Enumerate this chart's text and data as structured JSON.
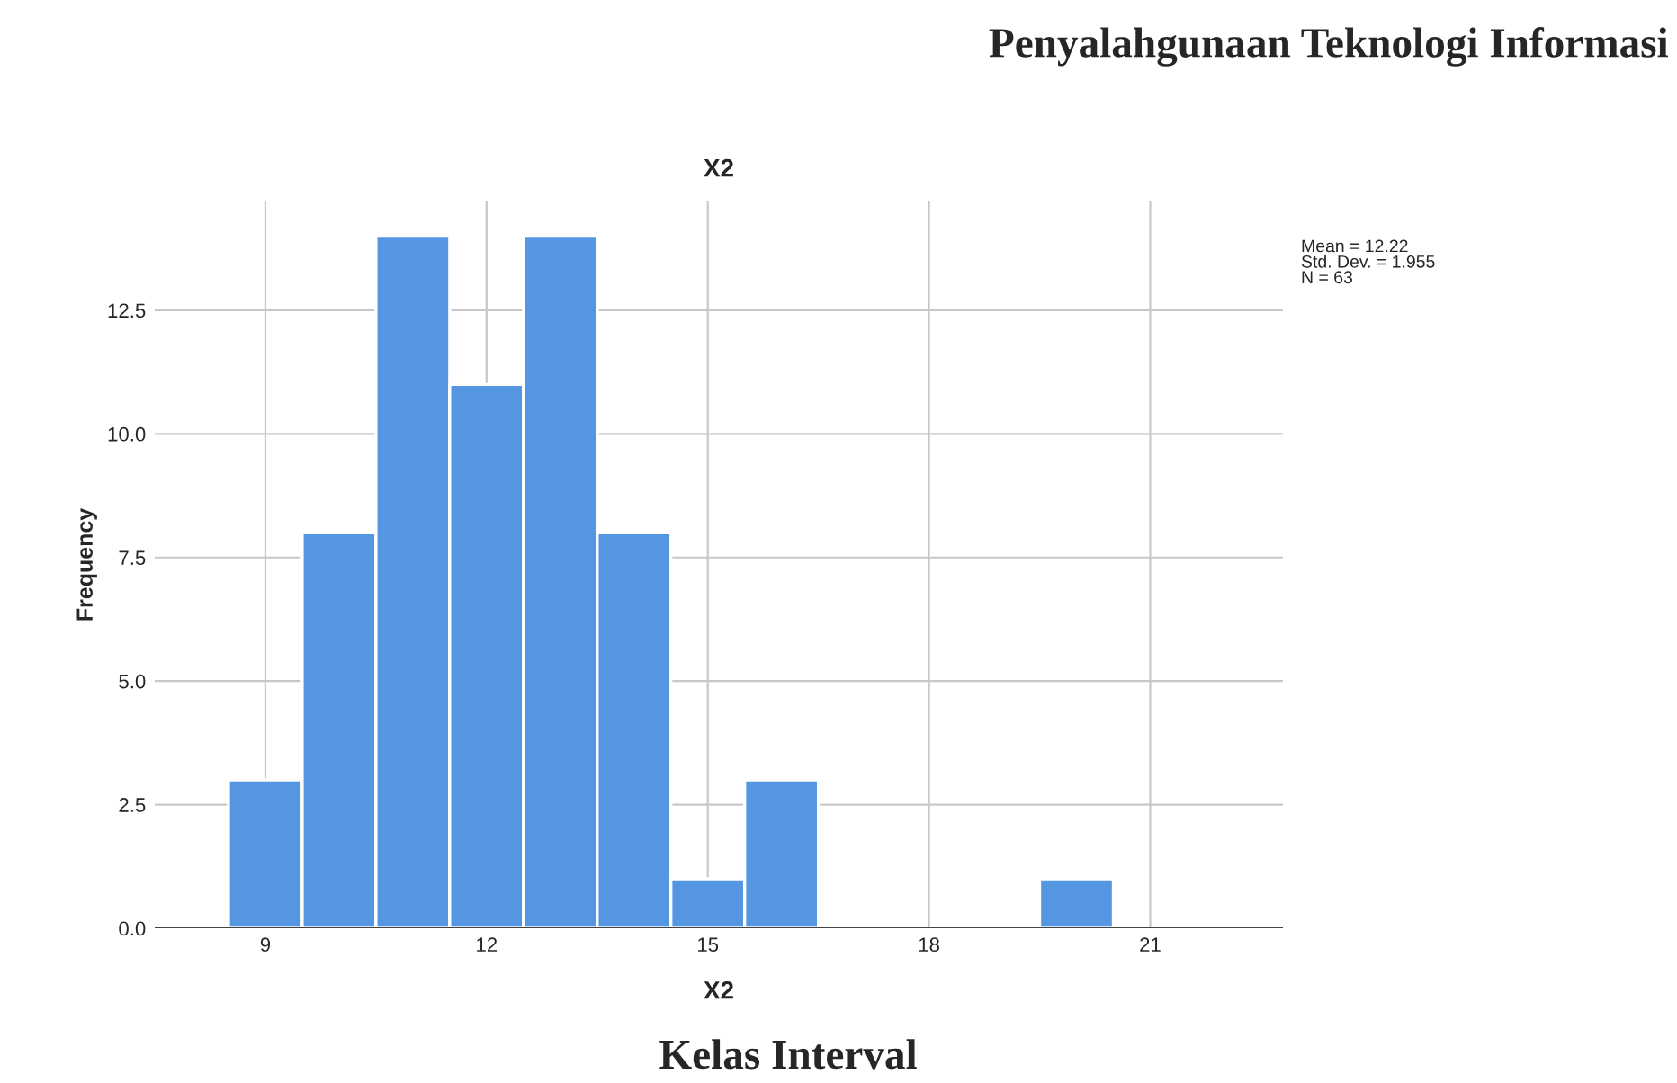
{
  "chart_data": {
    "type": "histogram",
    "title": "X2",
    "subtitle": "Penyalahgunaan Teknologi Informasi",
    "xlabel": "X2",
    "ylabel": "Frequency",
    "annotations": [
      "Mean = 12.22\nStd. Dev. = 1.955\nN = 63",
      "Kelas Interval"
    ],
    "bins": [
      8.5,
      9.5,
      10.5,
      11.5,
      12.5,
      13.5,
      14.5,
      15.5,
      16.5,
      17.5,
      18.5,
      19.5,
      20.5
    ],
    "values": [
      3,
      8,
      14,
      11,
      14,
      8,
      1,
      3,
      0,
      0,
      0,
      1
    ],
    "color": "#5596e3",
    "xlim": [
      7.5,
      22.8
    ],
    "xticks": [
      9,
      12,
      15,
      18,
      21
    ],
    "ylim": [
      0,
      14.7
    ],
    "yticks": [
      {
        "value": 0,
        "label": "0.0"
      },
      {
        "value": 2.5,
        "label": "2.5"
      },
      {
        "value": 5,
        "label": "5.0"
      },
      {
        "value": 7.5,
        "label": "7.5"
      },
      {
        "value": 10,
        "label": "10.0"
      },
      {
        "value": 12.5,
        "label": "12.5"
      }
    ],
    "grid": true,
    "legend": false
  }
}
